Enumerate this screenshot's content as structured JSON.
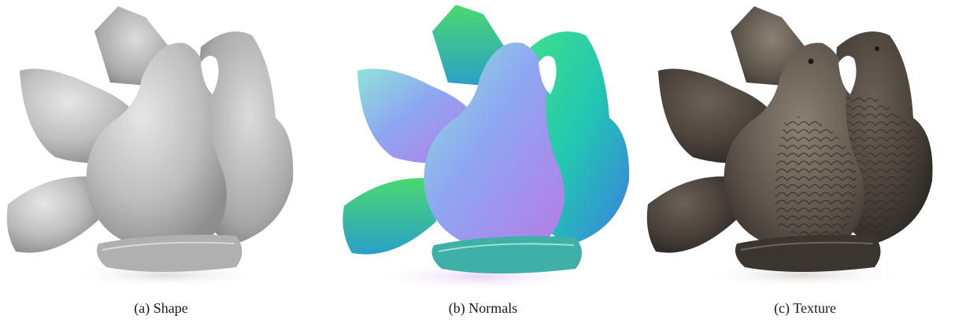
{
  "figures": [
    {
      "caption": "(a) Shape",
      "render": "gray-shaded-mesh"
    },
    {
      "caption": "(b) Normals",
      "render": "normal-map"
    },
    {
      "caption": "(c) Texture",
      "render": "textured-mesh"
    }
  ],
  "subject": "two doves statue"
}
